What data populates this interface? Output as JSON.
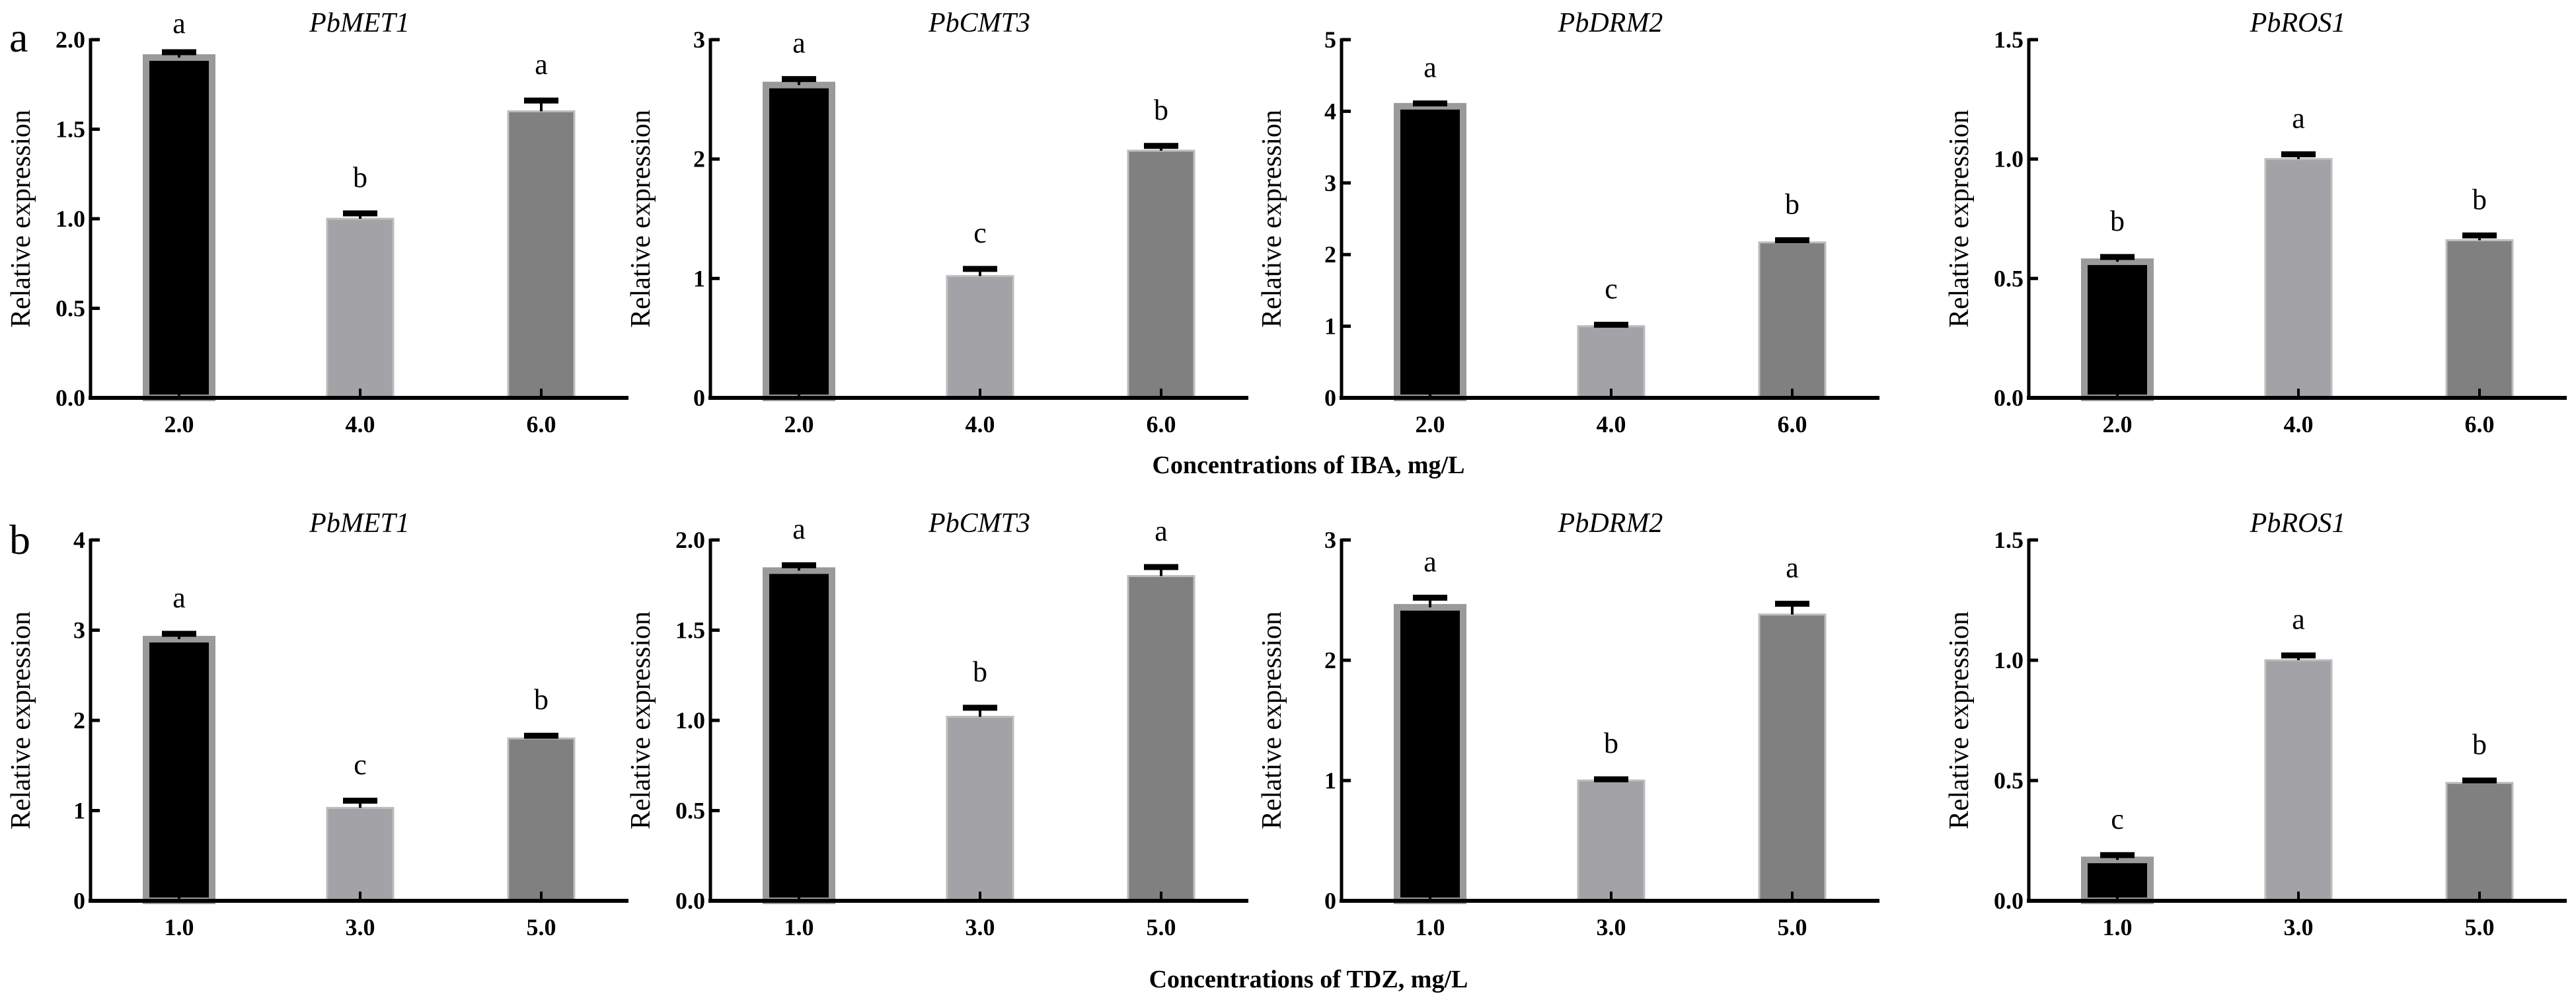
{
  "colors": {
    "bar1": "#000000",
    "bar1_edge": "#9a9a9a",
    "bar2": "#a3a3a7",
    "bar3": "#808080",
    "error": "#000000"
  },
  "rows": [
    {
      "panel_label": "a",
      "xlabel": "Concentrations of IBA, mg/L"
    },
    {
      "panel_label": "b",
      "xlabel": "Concentrations of TDZ, mg/L"
    }
  ],
  "chart_data": [
    {
      "type": "bar",
      "row": 0,
      "title": "PbMET1",
      "ylabel": "Relative expression",
      "categories": [
        "2.0",
        "4.0",
        "6.0"
      ],
      "values": [
        1.9,
        1.0,
        1.6
      ],
      "errors": [
        0.03,
        0.03,
        0.06
      ],
      "letters": [
        "a",
        "b",
        "a"
      ],
      "ylim": [
        0,
        2.0
      ],
      "yticks": [
        "0.0",
        "0.5",
        "1.0",
        "1.5",
        "2.0"
      ],
      "grid": false
    },
    {
      "type": "bar",
      "row": 0,
      "title": "PbCMT3",
      "ylabel": "Relative expression",
      "categories": [
        "2.0",
        "4.0",
        "6.0"
      ],
      "values": [
        2.62,
        1.02,
        2.07
      ],
      "errors": [
        0.05,
        0.06,
        0.04
      ],
      "letters": [
        "a",
        "c",
        "b"
      ],
      "ylim": [
        0,
        3
      ],
      "yticks": [
        "0",
        "1",
        "2",
        "3"
      ],
      "grid": false
    },
    {
      "type": "bar",
      "row": 0,
      "title": "PbDRM2",
      "ylabel": "Relative expression",
      "categories": [
        "2.0",
        "4.0",
        "6.0"
      ],
      "values": [
        4.07,
        1.0,
        2.17
      ],
      "errors": [
        0.04,
        0.02,
        0.03
      ],
      "letters": [
        "a",
        "c",
        "b"
      ],
      "ylim": [
        0,
        5
      ],
      "yticks": [
        "0",
        "1",
        "2",
        "3",
        "4",
        "5"
      ],
      "grid": false
    },
    {
      "type": "bar",
      "row": 0,
      "title": "PbROS1",
      "ylabel": "Relative expression",
      "categories": [
        "2.0",
        "4.0",
        "6.0"
      ],
      "values": [
        0.57,
        1.0,
        0.66
      ],
      "errors": [
        0.02,
        0.02,
        0.02
      ],
      "letters": [
        "b",
        "a",
        "b"
      ],
      "ylim": [
        0,
        1.5
      ],
      "yticks": [
        "0.0",
        "0.5",
        "1.0",
        "1.5"
      ],
      "grid": false
    },
    {
      "type": "bar",
      "row": 1,
      "title": "PbMET1",
      "ylabel": "Relative expression",
      "categories": [
        "1.0",
        "3.0",
        "5.0"
      ],
      "values": [
        2.9,
        1.03,
        1.8
      ],
      "errors": [
        0.06,
        0.08,
        0.03
      ],
      "letters": [
        "a",
        "c",
        "b"
      ],
      "ylim": [
        0,
        4
      ],
      "yticks": [
        "0",
        "1",
        "2",
        "3",
        "4"
      ],
      "grid": false
    },
    {
      "type": "bar",
      "row": 1,
      "title": "PbCMT3",
      "ylabel": "Relative expression",
      "categories": [
        "1.0",
        "3.0",
        "5.0"
      ],
      "values": [
        1.83,
        1.02,
        1.8
      ],
      "errors": [
        0.03,
        0.05,
        0.05
      ],
      "letters": [
        "a",
        "b",
        "a"
      ],
      "ylim": [
        0,
        2.0
      ],
      "yticks": [
        "0.0",
        "0.5",
        "1.0",
        "1.5",
        "2.0"
      ],
      "grid": false
    },
    {
      "type": "bar",
      "row": 1,
      "title": "PbDRM2",
      "ylabel": "Relative expression",
      "categories": [
        "1.0",
        "3.0",
        "5.0"
      ],
      "values": [
        2.44,
        1.0,
        2.38
      ],
      "errors": [
        0.08,
        0.01,
        0.09
      ],
      "letters": [
        "a",
        "b",
        "a"
      ],
      "ylim": [
        0,
        3
      ],
      "yticks": [
        "0",
        "1",
        "2",
        "3"
      ],
      "grid": false
    },
    {
      "type": "bar",
      "row": 1,
      "title": "PbROS1",
      "ylabel": "Relative expression",
      "categories": [
        "1.0",
        "3.0",
        "5.0"
      ],
      "values": [
        0.17,
        1.0,
        0.49
      ],
      "errors": [
        0.02,
        0.02,
        0.01
      ],
      "letters": [
        "c",
        "a",
        "b"
      ],
      "ylim": [
        0,
        1.5
      ],
      "yticks": [
        "0.0",
        "0.5",
        "1.0",
        "1.5"
      ],
      "grid": false
    }
  ]
}
